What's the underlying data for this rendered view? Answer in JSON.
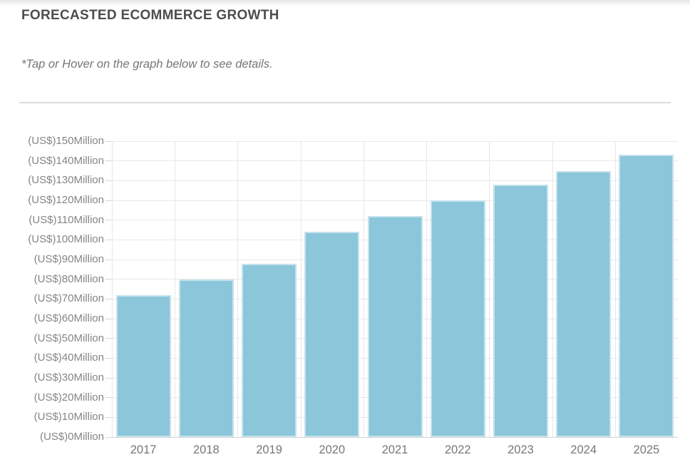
{
  "header": {
    "title": "FORECASTED ECOMMERCE GROWTH",
    "subtitle": "*Tap or Hover on the graph below to see details."
  },
  "chart_data": {
    "type": "bar",
    "title": "FORECASTED ECOMMERCE GROWTH",
    "categories": [
      "2017",
      "2018",
      "2019",
      "2020",
      "2021",
      "2022",
      "2023",
      "2024",
      "2025"
    ],
    "values": [
      72,
      80,
      88,
      104,
      112,
      120,
      128,
      135,
      143
    ],
    "unit_prefix": "(US$)",
    "unit_suffix": "Million",
    "xlabel": "",
    "ylabel": "(US$) Million",
    "ylim": [
      0,
      150
    ],
    "y_ticks": [
      0,
      10,
      20,
      30,
      40,
      50,
      60,
      70,
      80,
      90,
      100,
      110,
      120,
      130,
      140,
      150
    ],
    "y_tick_labels": [
      "(US$)0Million",
      "(US$)10Million",
      "(US$)20Million",
      "(US$)30Million",
      "(US$)40Million",
      "(US$)50Million",
      "(US$)60Million",
      "(US$)70Million",
      "(US$)80Million",
      "(US$)90Million",
      "(US$)100Million",
      "(US$)110Million",
      "(US$)120Million",
      "(US$)130Million",
      "(US$)140Million",
      "(US$)150Million"
    ],
    "grid": true,
    "legend_position": "none"
  },
  "colors": {
    "bar_fill": "#8BC6DA",
    "gridline": "#e8e8e8",
    "axis_line": "#d2d2d2",
    "title_text": "#4d4d4d",
    "subtitle_text": "#767676",
    "tick_text": "#858585"
  }
}
